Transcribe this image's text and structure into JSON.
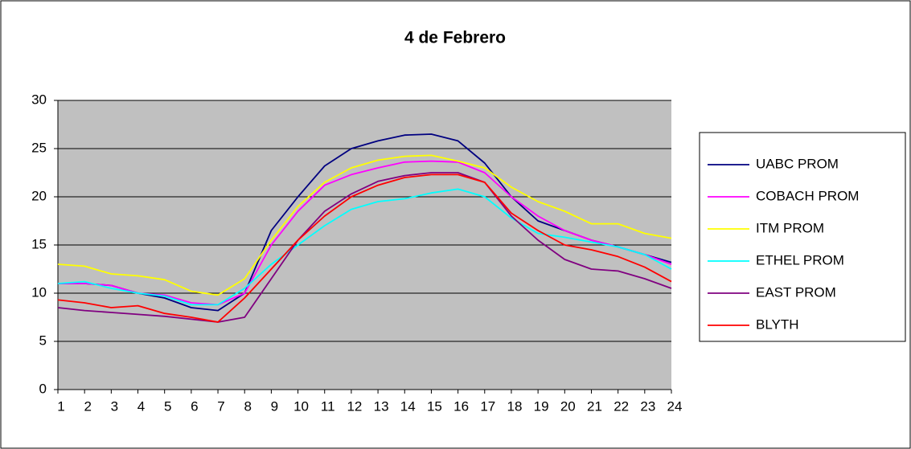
{
  "chart_data": {
    "type": "line",
    "title": "4 de Febrero",
    "x": [
      1,
      2,
      3,
      4,
      5,
      6,
      7,
      8,
      9,
      10,
      11,
      12,
      13,
      14,
      15,
      16,
      17,
      18,
      19,
      20,
      21,
      22,
      23,
      24
    ],
    "xlim": [
      1,
      24
    ],
    "xticks": [
      1,
      2,
      3,
      4,
      5,
      6,
      7,
      8,
      9,
      10,
      11,
      12,
      13,
      14,
      15,
      16,
      17,
      18,
      19,
      20,
      21,
      22,
      23,
      24
    ],
    "ylim": [
      0,
      30
    ],
    "yticks": [
      0,
      5,
      10,
      15,
      20,
      25,
      30
    ],
    "grid": true,
    "legend": "right",
    "series": [
      {
        "name": "UABC PROM",
        "color": "#000080",
        "values": [
          11,
          11,
          10.8,
          10,
          9.5,
          8.5,
          8.2,
          10,
          16.5,
          20,
          23.2,
          25,
          25.8,
          26.4,
          26.5,
          25.8,
          23.5,
          20,
          17.5,
          16.5,
          15.5,
          14.8,
          14,
          13.2
        ]
      },
      {
        "name": "COBACH PROM",
        "color": "#ff00ff",
        "values": [
          11,
          11,
          10.8,
          10,
          9.8,
          9,
          8.8,
          10,
          15,
          18.5,
          21.2,
          22.3,
          23,
          23.6,
          23.7,
          23.6,
          22.5,
          20,
          18,
          16.5,
          15.5,
          14.8,
          14,
          13
        ]
      },
      {
        "name": "ITM PROM",
        "color": "#ffff00",
        "values": [
          13,
          12.8,
          12,
          11.8,
          11.4,
          10.2,
          9.8,
          11.5,
          15.5,
          19,
          21.5,
          23,
          23.8,
          24.2,
          24.3,
          23.7,
          23,
          21,
          19.5,
          18.5,
          17.2,
          17.2,
          16.2,
          15.7
        ]
      },
      {
        "name": "ETHEL PROM",
        "color": "#00ffff",
        "values": [
          11,
          11.2,
          10.5,
          10,
          9.7,
          8.8,
          8.8,
          10.5,
          13,
          15,
          17,
          18.7,
          19.5,
          19.8,
          20.4,
          20.8,
          20,
          17.8,
          16.2,
          15.8,
          15.3,
          14.8,
          14,
          12.5
        ]
      },
      {
        "name": "EAST PROM",
        "color": "#800080",
        "values": [
          8.5,
          8.2,
          8,
          7.8,
          7.6,
          7.3,
          7,
          7.5,
          11.5,
          15.5,
          18.5,
          20.3,
          21.6,
          22.2,
          22.5,
          22.5,
          21.5,
          18,
          15.5,
          13.5,
          12.5,
          12.3,
          11.5,
          10.5
        ]
      },
      {
        "name": "BLYTH",
        "color": "#ff0000",
        "values": [
          9.3,
          9,
          8.5,
          8.7,
          7.9,
          7.5,
          7,
          9.5,
          12.5,
          15.5,
          18,
          20,
          21.2,
          22,
          22.3,
          22.3,
          21.5,
          18.3,
          16.5,
          15,
          14.5,
          13.8,
          12.7,
          11.2
        ]
      }
    ]
  }
}
